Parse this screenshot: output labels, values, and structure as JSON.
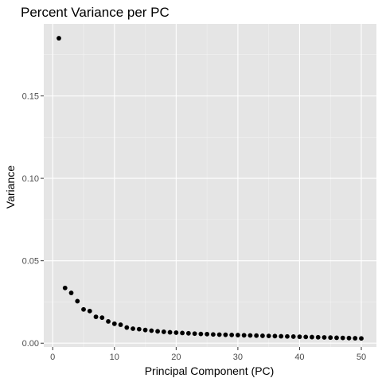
{
  "chart_data": {
    "type": "scatter",
    "title": "Percent Variance per PC",
    "xlabel": "Principal Component (PC)",
    "ylabel": "Variance",
    "xlim": [
      -1.45,
      52.45
    ],
    "ylim": [
      -0.0023,
      0.1937
    ],
    "x_ticks": [
      0,
      10,
      20,
      30,
      40,
      50
    ],
    "x_tick_labels": [
      "0",
      "10",
      "20",
      "30",
      "40",
      "50"
    ],
    "y_ticks": [
      0.0,
      0.05,
      0.1,
      0.15
    ],
    "y_tick_labels": [
      "0.00",
      "0.05",
      "0.10",
      "0.15"
    ],
    "grid": true,
    "legend": "none",
    "colors": {
      "panel_background": "#e5e5e5",
      "grid_major": "#ffffff",
      "grid_minor": "#f2f2f2",
      "point": "#000000",
      "tick": "#333333"
    },
    "series": [
      {
        "x": [
          1,
          2,
          3,
          4,
          5,
          6,
          7,
          8,
          9,
          10,
          11,
          12,
          13,
          14,
          15,
          16,
          17,
          18,
          19,
          20,
          21,
          22,
          23,
          24,
          25,
          26,
          27,
          28,
          29,
          30,
          31,
          32,
          33,
          34,
          35,
          36,
          37,
          38,
          39,
          40,
          41,
          42,
          43,
          44,
          45,
          46,
          47,
          48,
          49,
          50
        ],
        "y": [
          0.185,
          0.0335,
          0.0305,
          0.0255,
          0.0205,
          0.0195,
          0.016,
          0.0155,
          0.0132,
          0.0118,
          0.0112,
          0.0095,
          0.0088,
          0.0085,
          0.008,
          0.0076,
          0.0072,
          0.0069,
          0.0066,
          0.0064,
          0.0062,
          0.006,
          0.0058,
          0.0056,
          0.0055,
          0.0053,
          0.0052,
          0.0051,
          0.005,
          0.0049,
          0.0048,
          0.0047,
          0.0046,
          0.0045,
          0.0044,
          0.0043,
          0.0042,
          0.0041,
          0.004,
          0.0039,
          0.0038,
          0.0037,
          0.0036,
          0.0035,
          0.0034,
          0.0033,
          0.0032,
          0.0031,
          0.003,
          0.0029
        ]
      }
    ]
  }
}
